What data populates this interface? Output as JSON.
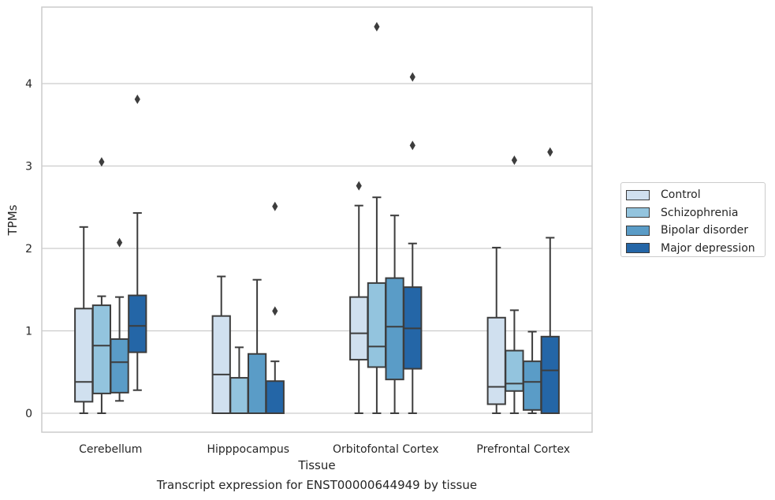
{
  "chart_data": {
    "type": "box",
    "title": "Transcript expression for ENST00000644949 by tissue",
    "xlabel": "Tissue",
    "ylabel": "TPMs",
    "ylim": [
      -0.22,
      4.95
    ],
    "yticks": [
      0,
      1,
      2,
      3,
      4
    ],
    "grid": "horizontal",
    "legend_position": "right",
    "categories": [
      "Cerebellum",
      "Hipppocampus",
      "Orbitofontal Cortex",
      "Prefrontal Cortex"
    ],
    "series": [
      {
        "name": "Control",
        "color": "#d0e0ef",
        "boxes": [
          {
            "whislo": 0.0,
            "q1": 0.14,
            "med": 0.38,
            "q3": 1.27,
            "whishi": 2.26,
            "fliers": []
          },
          {
            "whislo": 0.0,
            "q1": 0.0,
            "med": 0.47,
            "q3": 1.18,
            "whishi": 1.66,
            "fliers": []
          },
          {
            "whislo": 0.0,
            "q1": 0.65,
            "med": 0.97,
            "q3": 1.41,
            "whishi": 2.52,
            "fliers": [
              2.76
            ]
          },
          {
            "whislo": 0.0,
            "q1": 0.11,
            "med": 0.32,
            "q3": 1.16,
            "whishi": 2.01,
            "fliers": []
          }
        ]
      },
      {
        "name": "Schizophrenia",
        "color": "#93c4de",
        "boxes": [
          {
            "whislo": 0.0,
            "q1": 0.24,
            "med": 0.82,
            "q3": 1.31,
            "whishi": 1.42,
            "fliers": [
              3.05
            ]
          },
          {
            "whislo": 0.0,
            "q1": 0.0,
            "med": 0.0,
            "q3": 0.43,
            "whishi": 0.8,
            "fliers": []
          },
          {
            "whislo": 0.0,
            "q1": 0.56,
            "med": 0.81,
            "q3": 1.58,
            "whishi": 2.62,
            "fliers": [
              4.69
            ]
          },
          {
            "whislo": 0.0,
            "q1": 0.27,
            "med": 0.36,
            "q3": 0.76,
            "whishi": 1.25,
            "fliers": [
              3.07
            ]
          }
        ]
      },
      {
        "name": "Bipolar disorder",
        "color": "#5a9cc7",
        "boxes": [
          {
            "whislo": 0.15,
            "q1": 0.25,
            "med": 0.62,
            "q3": 0.9,
            "whishi": 1.41,
            "fliers": [
              2.07
            ]
          },
          {
            "whislo": 0.0,
            "q1": 0.0,
            "med": 0.0,
            "q3": 0.72,
            "whishi": 1.62,
            "fliers": []
          },
          {
            "whislo": 0.0,
            "q1": 0.41,
            "med": 1.05,
            "q3": 1.64,
            "whishi": 2.4,
            "fliers": []
          },
          {
            "whislo": 0.0,
            "q1": 0.04,
            "med": 0.38,
            "q3": 0.63,
            "whishi": 0.99,
            "fliers": []
          }
        ]
      },
      {
        "name": "Major depression",
        "color": "#2466a7",
        "boxes": [
          {
            "whislo": 0.28,
            "q1": 0.74,
            "med": 1.06,
            "q3": 1.43,
            "whishi": 2.43,
            "fliers": [
              3.81
            ]
          },
          {
            "whislo": 0.0,
            "q1": 0.0,
            "med": 0.0,
            "q3": 0.39,
            "whishi": 0.63,
            "fliers": [
              1.24,
              2.51
            ]
          },
          {
            "whislo": 0.0,
            "q1": 0.54,
            "med": 1.03,
            "q3": 1.53,
            "whishi": 2.06,
            "fliers": [
              3.25,
              4.08
            ]
          },
          {
            "whislo": 0.0,
            "q1": 0.0,
            "med": 0.52,
            "q3": 0.93,
            "whishi": 2.13,
            "fliers": [
              3.17
            ]
          }
        ]
      }
    ]
  }
}
